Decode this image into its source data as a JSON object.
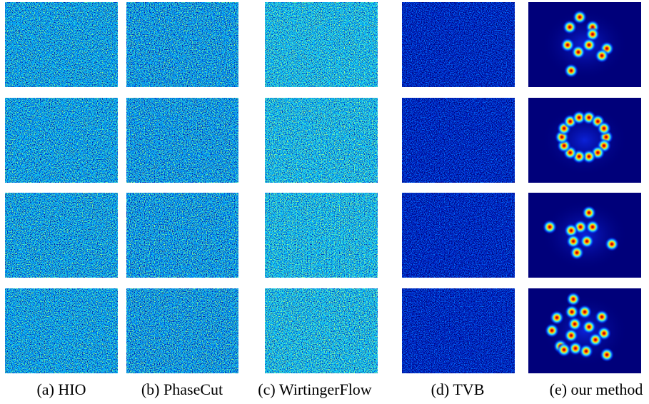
{
  "captions": [
    "(a) HIO",
    "(b) PhaseCut",
    "(c) WirtingerFlow",
    "(d) TVB",
    "(e) our method"
  ]
}
